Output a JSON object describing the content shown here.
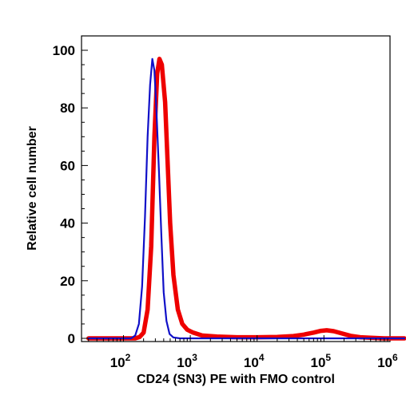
{
  "chart_data": {
    "type": "line",
    "title": "",
    "xlabel": "CD24 (SN3) PE with FMO control",
    "ylabel": "Relative cell number",
    "x_scale": "log",
    "xlim": [
      30,
      1600000
    ],
    "ylim": [
      0,
      100
    ],
    "grid": false,
    "legend": "none",
    "x_ticks": [
      {
        "base": "10",
        "exp": "2",
        "value": 100
      },
      {
        "base": "10",
        "exp": "3",
        "value": 1000
      },
      {
        "base": "10",
        "exp": "4",
        "value": 10000
      },
      {
        "base": "10",
        "exp": "5",
        "value": 100000
      },
      {
        "base": "10",
        "exp": "6",
        "value": 1000000
      }
    ],
    "y_ticks": [
      0,
      20,
      40,
      60,
      80,
      100
    ],
    "series": [
      {
        "color": "#1010c8",
        "points": [
          [
            30,
            0
          ],
          [
            130,
            0
          ],
          [
            150,
            1
          ],
          [
            170,
            5
          ],
          [
            190,
            18
          ],
          [
            210,
            42
          ],
          [
            230,
            70
          ],
          [
            250,
            88
          ],
          [
            270,
            97
          ],
          [
            290,
            93
          ],
          [
            310,
            80
          ],
          [
            340,
            58
          ],
          [
            370,
            35
          ],
          [
            400,
            16
          ],
          [
            440,
            6
          ],
          [
            490,
            1.5
          ],
          [
            560,
            0.3
          ],
          [
            700,
            0
          ],
          [
            1600000,
            0
          ]
        ]
      },
      {
        "color": "#ee0000",
        "points": [
          [
            30,
            0
          ],
          [
            150,
            0
          ],
          [
            175,
            0.5
          ],
          [
            200,
            2
          ],
          [
            230,
            10
          ],
          [
            260,
            32
          ],
          [
            290,
            70
          ],
          [
            320,
            92
          ],
          [
            345,
            97
          ],
          [
            375,
            95
          ],
          [
            420,
            82
          ],
          [
            460,
            60
          ],
          [
            500,
            40
          ],
          [
            560,
            22
          ],
          [
            650,
            10
          ],
          [
            760,
            5
          ],
          [
            900,
            3
          ],
          [
            1100,
            2
          ],
          [
            1500,
            1
          ],
          [
            2500,
            0.6
          ],
          [
            5000,
            0.4
          ],
          [
            10000,
            0.4
          ],
          [
            20000,
            0.5
          ],
          [
            35000,
            0.8
          ],
          [
            50000,
            1.3
          ],
          [
            70000,
            2
          ],
          [
            90000,
            2.6
          ],
          [
            110000,
            2.8
          ],
          [
            140000,
            2.5
          ],
          [
            180000,
            1.8
          ],
          [
            250000,
            0.9
          ],
          [
            350000,
            0.4
          ],
          [
            500000,
            0.2
          ],
          [
            800000,
            0
          ],
          [
            1600000,
            0
          ]
        ]
      }
    ]
  }
}
